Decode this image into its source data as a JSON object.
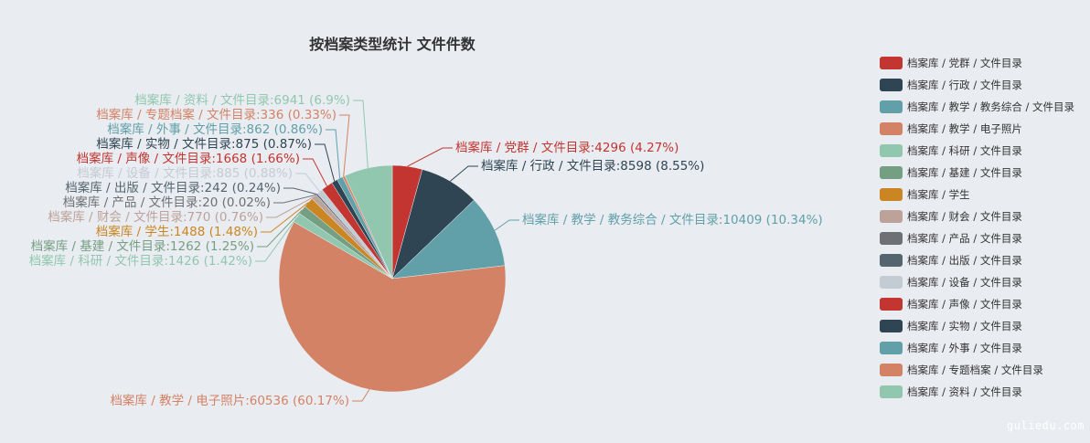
{
  "chart_data": {
    "type": "pie",
    "title": "按档案类型统计 文件件数",
    "slices": [
      {
        "name": "档案库 / 党群 / 文件目录",
        "value": 4296,
        "percent": "4.27%",
        "color": "#c23531"
      },
      {
        "name": "档案库 / 行政 / 文件目录",
        "value": 8598,
        "percent": "8.55%",
        "color": "#2f4554"
      },
      {
        "name": "档案库 / 教学 / 教务综合 / 文件目录",
        "value": 10409,
        "percent": "10.34%",
        "color": "#61a0a8"
      },
      {
        "name": "档案库 / 教学 / 电子照片",
        "value": 60536,
        "percent": "60.17%",
        "color": "#d48265"
      },
      {
        "name": "档案库 / 科研 / 文件目录",
        "value": 1426,
        "percent": "1.42%",
        "color": "#91c7ae"
      },
      {
        "name": "档案库 / 基建 / 文件目录",
        "value": 1262,
        "percent": "1.25%",
        "color": "#749f83"
      },
      {
        "name": "档案库 / 学生",
        "value": 1488,
        "percent": "1.48%",
        "color": "#ca8622"
      },
      {
        "name": "档案库 / 财会 / 文件目录",
        "value": 770,
        "percent": "0.76%",
        "color": "#bda29a"
      },
      {
        "name": "档案库 / 产品 / 文件目录",
        "value": 20,
        "percent": "0.02%",
        "color": "#6e7074"
      },
      {
        "name": "档案库 / 出版 / 文件目录",
        "value": 242,
        "percent": "0.24%",
        "color": "#546570"
      },
      {
        "name": "档案库 / 设备 / 文件目录",
        "value": 885,
        "percent": "0.88%",
        "color": "#c4ccd3"
      },
      {
        "name": "档案库 / 声像 / 文件目录",
        "value": 1668,
        "percent": "1.66%",
        "color": "#c23531"
      },
      {
        "name": "档案库 / 实物 / 文件目录",
        "value": 875,
        "percent": "0.87%",
        "color": "#2f4554"
      },
      {
        "name": "档案库 / 外事 / 文件目录",
        "value": 862,
        "percent": "0.86%",
        "color": "#61a0a8"
      },
      {
        "name": "档案库 / 专题档案 / 文件目录",
        "value": 336,
        "percent": "0.33%",
        "color": "#d48265"
      },
      {
        "name": "档案库 / 资料 / 文件目录",
        "value": 6941,
        "percent": "6.9%",
        "color": "#91c7ae"
      }
    ],
    "legend_position": "right"
  },
  "watermark": "guliedu.com"
}
